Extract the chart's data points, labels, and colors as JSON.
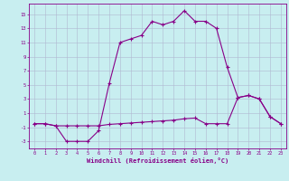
{
  "xlabel": "Windchill (Refroidissement éolien,°C)",
  "background_color": "#c8eef0",
  "grid_color": "#b0b8d0",
  "line_color": "#880088",
  "xlim": [
    -0.5,
    23.5
  ],
  "ylim": [
    -4.0,
    16.5
  ],
  "yticks": [
    -3,
    -1,
    1,
    3,
    5,
    7,
    9,
    11,
    13,
    15
  ],
  "xticks": [
    0,
    1,
    2,
    3,
    4,
    5,
    6,
    7,
    8,
    9,
    10,
    11,
    12,
    13,
    14,
    15,
    16,
    17,
    18,
    19,
    20,
    21,
    22,
    23
  ],
  "curve1_x": [
    0,
    1,
    2,
    3,
    4,
    5,
    6,
    7,
    8,
    9,
    10,
    11,
    12,
    13,
    14,
    15,
    16,
    17,
    18,
    19,
    20,
    21,
    22,
    23
  ],
  "curve1_y": [
    -0.5,
    -0.5,
    -0.8,
    -3.0,
    -3.0,
    -3.0,
    -1.5,
    5.2,
    11.0,
    11.5,
    12.0,
    14.0,
    13.5,
    14.0,
    15.5,
    14.0,
    14.0,
    13.0,
    7.5,
    3.2,
    3.5,
    3.0,
    0.5,
    -0.5
  ],
  "curve2_x": [
    0,
    1,
    2,
    3,
    4,
    5,
    6,
    7,
    8,
    9,
    10,
    11,
    12,
    13,
    14,
    15,
    16,
    17,
    18,
    19,
    20,
    21,
    22,
    23
  ],
  "curve2_y": [
    -0.5,
    -0.5,
    -0.8,
    -0.8,
    -0.8,
    -0.8,
    -0.8,
    -0.6,
    -0.5,
    -0.4,
    -0.3,
    -0.2,
    -0.1,
    0.0,
    0.2,
    0.3,
    -0.5,
    -0.5,
    -0.5,
    3.2,
    3.5,
    3.0,
    0.5,
    -0.5
  ]
}
